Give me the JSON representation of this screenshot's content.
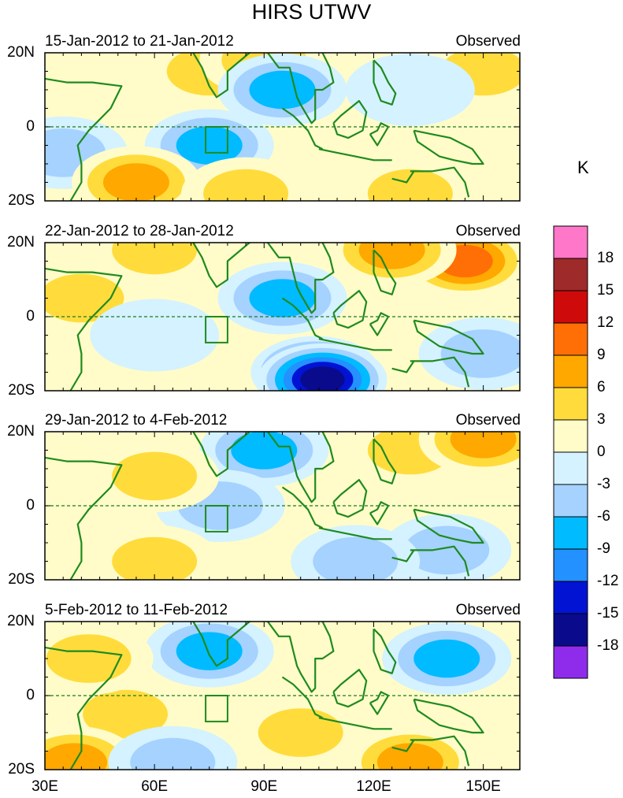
{
  "chart_data": {
    "type": "heatmap",
    "title": "HIRS UTWV",
    "unit": "K",
    "x_axis": {
      "range": [
        30,
        160
      ],
      "ticks": [
        30,
        60,
        90,
        120,
        150
      ],
      "tick_labels": [
        "30E",
        "60E",
        "90E",
        "120E",
        "150E"
      ]
    },
    "y_axis": {
      "range": [
        -20,
        20
      ],
      "tick_labels": [
        "20N",
        "0",
        "20S"
      ]
    },
    "colorbar": {
      "levels": [
        "18",
        "15",
        "12",
        "9",
        "6",
        "3",
        "0",
        "-3",
        "-6",
        "-9",
        "-12",
        "-15",
        "-18"
      ],
      "colors": [
        "#ff77c8",
        "#9e2a2a",
        "#cf0a0a",
        "#ff6f05",
        "#ffa800",
        "#ffdc3c",
        "#fffcc9",
        "#d4f2ff",
        "#a5d2ff",
        "#00bbff",
        "#2391ff",
        "#0213d4",
        "#0a0b8c",
        "#8f2ceb"
      ]
    },
    "panels": [
      {
        "period": "15-Jan-2012 to 21-Jan-2012",
        "label": "Observed",
        "anomaly_regions": [
          {
            "lon": 48,
            "lat": 15,
            "value": 1
          },
          {
            "lon": 75,
            "lat": 15,
            "value": 5
          },
          {
            "lon": 90,
            "lat": 18,
            "value": 4
          },
          {
            "lon": 95,
            "lat": 10,
            "value": -7
          },
          {
            "lon": 75,
            "lat": -5,
            "value": -8
          },
          {
            "lon": 35,
            "lat": -7,
            "value": -6
          },
          {
            "lon": 55,
            "lat": -15,
            "value": 7
          },
          {
            "lon": 85,
            "lat": -18,
            "value": 5
          },
          {
            "lon": 130,
            "lat": -18,
            "value": 6
          },
          {
            "lon": 150,
            "lat": 15,
            "value": 4
          },
          {
            "lon": 130,
            "lat": 10,
            "value": -2
          }
        ]
      },
      {
        "period": "22-Jan-2012 to 28-Jan-2012",
        "label": "Observed",
        "anomaly_regions": [
          {
            "lon": 145,
            "lat": 15,
            "value": 11
          },
          {
            "lon": 125,
            "lat": 18,
            "value": 8
          },
          {
            "lon": 40,
            "lat": 5,
            "value": 6
          },
          {
            "lon": 95,
            "lat": 5,
            "value": -7
          },
          {
            "lon": 104,
            "lat": -15,
            "value": -15
          },
          {
            "lon": 106,
            "lat": -17,
            "value": -18
          },
          {
            "lon": 60,
            "lat": -5,
            "value": -3
          },
          {
            "lon": 150,
            "lat": -10,
            "value": -5
          },
          {
            "lon": 60,
            "lat": 18,
            "value": 5
          }
        ]
      },
      {
        "period": "29-Jan-2012 to 4-Feb-2012",
        "label": "Observed",
        "anomaly_regions": [
          {
            "lon": 90,
            "lat": 15,
            "value": -7
          },
          {
            "lon": 78,
            "lat": 0,
            "value": -6
          },
          {
            "lon": 60,
            "lat": 8,
            "value": 6
          },
          {
            "lon": 130,
            "lat": 15,
            "value": 5
          },
          {
            "lon": 150,
            "lat": 18,
            "value": 7
          },
          {
            "lon": 140,
            "lat": -12,
            "value": -6
          },
          {
            "lon": 60,
            "lat": -15,
            "value": 4
          },
          {
            "lon": 115,
            "lat": -15,
            "value": -4
          }
        ]
      },
      {
        "period": "5-Feb-2012 to 11-Feb-2012",
        "label": "Observed",
        "anomaly_regions": [
          {
            "lon": 75,
            "lat": 12,
            "value": -8
          },
          {
            "lon": 140,
            "lat": 10,
            "value": -7
          },
          {
            "lon": 130,
            "lat": -18,
            "value": 8
          },
          {
            "lon": 52,
            "lat": -5,
            "value": 6
          },
          {
            "lon": 38,
            "lat": -18,
            "value": 7
          },
          {
            "lon": 65,
            "lat": -18,
            "value": -6
          },
          {
            "lon": 100,
            "lat": -10,
            "value": 4
          },
          {
            "lon": 42,
            "lat": 10,
            "value": 5
          }
        ]
      }
    ]
  }
}
